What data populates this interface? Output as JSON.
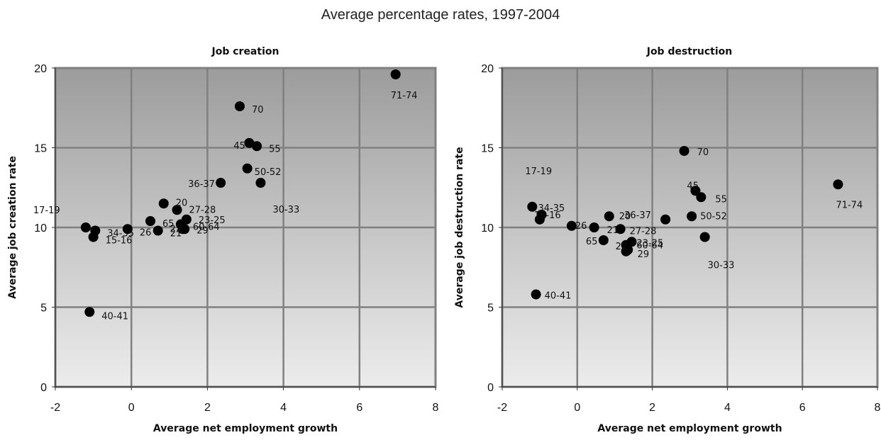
{
  "title": "Average percentage rates, 1997-2004",
  "chart_data": [
    {
      "type": "scatter",
      "title": "Job creation",
      "xlabel": "Average net employment growth",
      "ylabel": "Average job creation rate",
      "xlim": [
        -2,
        8
      ],
      "ylim": [
        0,
        20
      ],
      "xticks": [
        -2,
        0,
        2,
        4,
        6,
        8
      ],
      "yticks": [
        0,
        5,
        10,
        15,
        20
      ],
      "grid": true,
      "points": [
        {
          "label": "17-19",
          "x": -1.2,
          "y": 10.0
        },
        {
          "label": "34-35",
          "x": -0.95,
          "y": 9.8
        },
        {
          "label": "15-16",
          "x": -1.0,
          "y": 9.4
        },
        {
          "label": "40-41",
          "x": -1.1,
          "y": 4.7
        },
        {
          "label": "26",
          "x": -0.1,
          "y": 9.9
        },
        {
          "label": "65",
          "x": 0.5,
          "y": 10.4
        },
        {
          "label": "21",
          "x": 0.7,
          "y": 9.8
        },
        {
          "label": "20",
          "x": 0.85,
          "y": 11.5
        },
        {
          "label": "36-37",
          "x": 2.35,
          "y": 12.8
        },
        {
          "label": "27-28",
          "x": 1.2,
          "y": 11.1
        },
        {
          "label": "23-25",
          "x": 1.45,
          "y": 10.5
        },
        {
          "label": "60-64",
          "x": 1.3,
          "y": 10.2
        },
        {
          "label": "22",
          "x": 1.35,
          "y": 9.9
        },
        {
          "label": "29",
          "x": 1.4,
          "y": 9.9
        },
        {
          "label": "70",
          "x": 2.85,
          "y": 17.6
        },
        {
          "label": "45",
          "x": 3.1,
          "y": 15.3
        },
        {
          "label": "55",
          "x": 3.3,
          "y": 15.1
        },
        {
          "label": "50-52",
          "x": 3.05,
          "y": 13.7
        },
        {
          "label": "30-33",
          "x": 3.4,
          "y": 12.8
        },
        {
          "label": "71-74",
          "x": 6.95,
          "y": 19.6
        }
      ]
    },
    {
      "type": "scatter",
      "title": "Job destruction",
      "xlabel": "Average net employment growth",
      "ylabel": "Average job destruction rate",
      "xlim": [
        -2,
        8
      ],
      "ylim": [
        0,
        20
      ],
      "xticks": [
        -2,
        0,
        2,
        4,
        6,
        8
      ],
      "yticks": [
        0,
        5,
        10,
        15,
        20
      ],
      "grid": true,
      "points": [
        {
          "label": "17-19",
          "x": -1.2,
          "y": 11.3
        },
        {
          "label": "34-35",
          "x": -0.95,
          "y": 10.8
        },
        {
          "label": "15-16",
          "x": -1.0,
          "y": 10.5
        },
        {
          "label": "40-41",
          "x": -1.1,
          "y": 5.8
        },
        {
          "label": "26",
          "x": -0.15,
          "y": 10.1
        },
        {
          "label": "21",
          "x": 0.45,
          "y": 10.0
        },
        {
          "label": "65",
          "x": 0.7,
          "y": 9.2
        },
        {
          "label": "20",
          "x": 0.85,
          "y": 10.7
        },
        {
          "label": "36-37",
          "x": 2.35,
          "y": 10.5
        },
        {
          "label": "27-28",
          "x": 1.15,
          "y": 9.9
        },
        {
          "label": "22",
          "x": 1.3,
          "y": 8.9
        },
        {
          "label": "23-25",
          "x": 1.45,
          "y": 9.1
        },
        {
          "label": "60-64",
          "x": 1.35,
          "y": 8.6
        },
        {
          "label": "29",
          "x": 1.3,
          "y": 8.5
        },
        {
          "label": "70",
          "x": 2.85,
          "y": 14.8
        },
        {
          "label": "45",
          "x": 3.15,
          "y": 12.3
        },
        {
          "label": "55",
          "x": 3.3,
          "y": 11.9
        },
        {
          "label": "50-52",
          "x": 3.05,
          "y": 10.7
        },
        {
          "label": "30-33",
          "x": 3.4,
          "y": 9.4
        },
        {
          "label": "71-74",
          "x": 6.95,
          "y": 12.7
        }
      ]
    }
  ]
}
